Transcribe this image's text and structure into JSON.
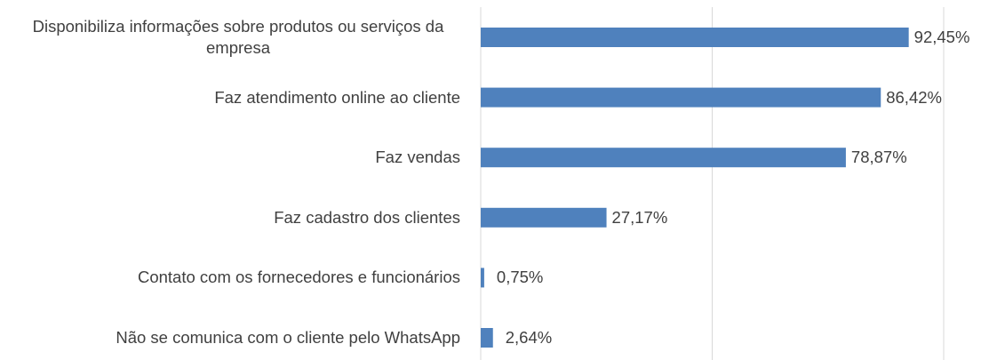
{
  "chart_data": {
    "type": "bar",
    "orientation": "horizontal",
    "categories": [
      "Disponibiliza informações sobre produtos ou serviços da empresa",
      "Faz atendimento online ao cliente",
      "Faz vendas",
      "Faz cadastro dos clientes",
      "Contato com os fornecedores e funcionários",
      "Não se comunica com o cliente pelo WhatsApp"
    ],
    "values": [
      92.45,
      86.42,
      78.87,
      27.17,
      0.75,
      2.64
    ],
    "value_labels": [
      "92,45%",
      "86,42%",
      "78,87%",
      "27,17%",
      "0,75%",
      "2,64%"
    ],
    "color": "#4f81bd",
    "xlim": [
      0,
      100
    ],
    "xticks": [
      0,
      50,
      100
    ],
    "grid": true
  }
}
